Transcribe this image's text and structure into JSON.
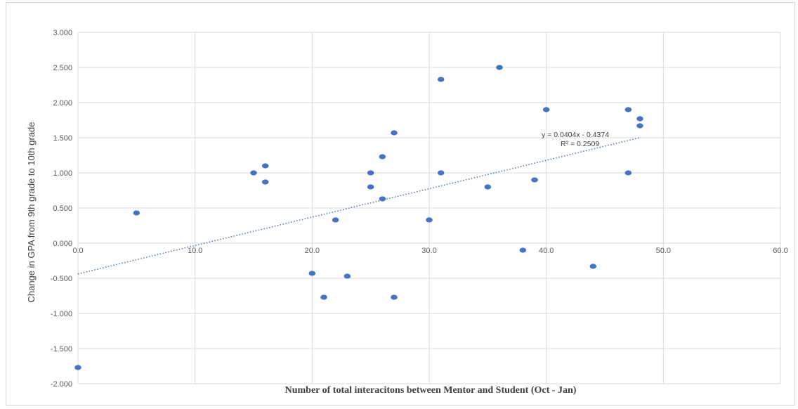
{
  "chart_data": {
    "type": "scatter",
    "title": "",
    "xlabel": "Number of total interacitons between Mentor and Student (Oct - Jan)",
    "ylabel": "Change in GPA from 9th grade to 10th grade",
    "xlim": [
      0,
      60
    ],
    "ylim": [
      -2,
      3
    ],
    "x_ticks": [
      0,
      10,
      20,
      30,
      40,
      50,
      60
    ],
    "y_ticks": [
      3,
      2.5,
      2,
      1.5,
      1,
      0.5,
      0,
      -0.5,
      -1,
      -1.5,
      -2
    ],
    "x_tick_labels": [
      "0.0",
      "10.0",
      "20.0",
      "30.0",
      "40.0",
      "50.0",
      "60.0"
    ],
    "y_tick_labels": [
      "3.000",
      "2.500",
      "2.000",
      "1.500",
      "1.000",
      "0.500",
      "0.000",
      "-0.500",
      "-1.000",
      "-1.500",
      "-2.000"
    ],
    "grid": true,
    "marker_color": "#4472c4",
    "series": [
      {
        "points": [
          [
            0,
            -1.77
          ],
          [
            5,
            0.43
          ],
          [
            15,
            1.0
          ],
          [
            16,
            1.1
          ],
          [
            16,
            0.87
          ],
          [
            20,
            -0.43
          ],
          [
            21,
            -0.77
          ],
          [
            22,
            0.33
          ],
          [
            23,
            -0.47
          ],
          [
            25,
            1.0
          ],
          [
            25,
            0.8
          ],
          [
            26,
            1.23
          ],
          [
            26,
            0.63
          ],
          [
            27,
            1.57
          ],
          [
            27,
            -0.77
          ],
          [
            30,
            0.33
          ],
          [
            31,
            2.33
          ],
          [
            31,
            1.0
          ],
          [
            35,
            0.8
          ],
          [
            36,
            2.5
          ],
          [
            38,
            -0.1
          ],
          [
            39,
            0.9
          ],
          [
            40,
            1.9
          ],
          [
            44,
            -0.33
          ],
          [
            47,
            1.9
          ],
          [
            47,
            1.0
          ],
          [
            48,
            1.77
          ],
          [
            48,
            1.67
          ]
        ]
      }
    ],
    "trendline": {
      "type": "linear",
      "slope": 0.0404,
      "intercept": -0.4374,
      "x_range": [
        0,
        48
      ],
      "equation": "y = 0.0404x - 0.4374",
      "r_squared": "R² = 0.2509",
      "color": "#4472c4"
    }
  }
}
